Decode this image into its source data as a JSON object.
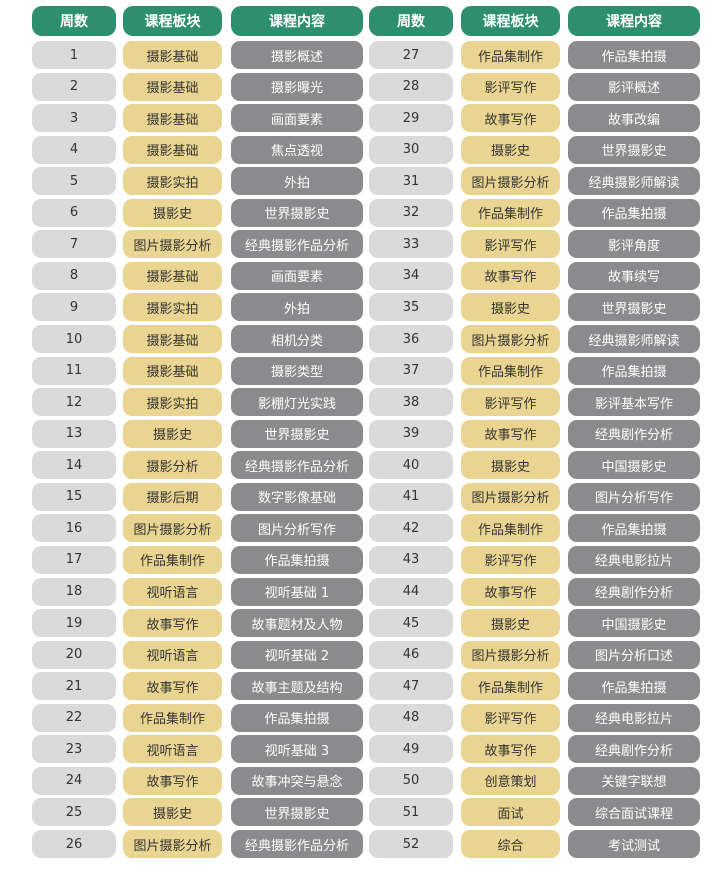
{
  "headers": [
    "周数",
    "课程板块",
    "课程内容",
    "周数",
    "课程板块",
    "课程内容"
  ],
  "colors": {
    "header": "#2e8f6f",
    "week": "#dadada",
    "module": "#e9d591",
    "content": "#8b8b8d"
  },
  "left": [
    [
      "1",
      "摄影基础",
      "摄影概述"
    ],
    [
      "2",
      "摄影基础",
      "摄影曝光"
    ],
    [
      "3",
      "摄影基础",
      "画面要素"
    ],
    [
      "4",
      "摄影基础",
      "焦点透视"
    ],
    [
      "5",
      "摄影实拍",
      "外拍"
    ],
    [
      "6",
      "摄影史",
      "世界摄影史"
    ],
    [
      "7",
      "图片摄影分析",
      "经典摄影作品分析"
    ],
    [
      "8",
      "摄影基础",
      "画面要素"
    ],
    [
      "9",
      "摄影实拍",
      "外拍"
    ],
    [
      "10",
      "摄影基础",
      "相机分类"
    ],
    [
      "11",
      "摄影基础",
      "摄影类型"
    ],
    [
      "12",
      "摄影实拍",
      "影棚灯光实践"
    ],
    [
      "13",
      "摄影史",
      "世界摄影史"
    ],
    [
      "14",
      "摄影分析",
      "经典摄影作品分析"
    ],
    [
      "15",
      "摄影后期",
      "数字影像基础"
    ],
    [
      "16",
      "图片摄影分析",
      "图片分析写作"
    ],
    [
      "17",
      "作品集制作",
      "作品集拍摄"
    ],
    [
      "18",
      "视听语言",
      "视听基础 1"
    ],
    [
      "19",
      "故事写作",
      "故事题材及人物"
    ],
    [
      "20",
      "视听语言",
      "视听基础 2"
    ],
    [
      "21",
      "故事写作",
      "故事主题及结构"
    ],
    [
      "22",
      "作品集制作",
      "作品集拍摄"
    ],
    [
      "23",
      "视听语言",
      "视听基础 3"
    ],
    [
      "24",
      "故事写作",
      "故事冲突与悬念"
    ],
    [
      "25",
      "摄影史",
      "世界摄影史"
    ],
    [
      "26",
      "图片摄影分析",
      "经典摄影作品分析"
    ]
  ],
  "right": [
    [
      "27",
      "作品集制作",
      "作品集拍摄"
    ],
    [
      "28",
      "影评写作",
      "影评概述"
    ],
    [
      "29",
      "故事写作",
      "故事改编"
    ],
    [
      "30",
      "摄影史",
      "世界摄影史"
    ],
    [
      "31",
      "图片摄影分析",
      "经典摄影师解读"
    ],
    [
      "32",
      "作品集制作",
      "作品集拍摄"
    ],
    [
      "33",
      "影评写作",
      "影评角度"
    ],
    [
      "34",
      "故事写作",
      "故事续写"
    ],
    [
      "35",
      "摄影史",
      "世界摄影史"
    ],
    [
      "36",
      "图片摄影分析",
      "经典摄影师解读"
    ],
    [
      "37",
      "作品集制作",
      "作品集拍摄"
    ],
    [
      "38",
      "影评写作",
      "影评基本写作"
    ],
    [
      "39",
      "故事写作",
      "经典剧作分析"
    ],
    [
      "40",
      "摄影史",
      "中国摄影史"
    ],
    [
      "41",
      "图片摄影分析",
      "图片分析写作"
    ],
    [
      "42",
      "作品集制作",
      "作品集拍摄"
    ],
    [
      "43",
      "影评写作",
      "经典电影拉片"
    ],
    [
      "44",
      "故事写作",
      "经典剧作分析"
    ],
    [
      "45",
      "摄影史",
      "中国摄影史"
    ],
    [
      "46",
      "图片摄影分析",
      "图片分析口述"
    ],
    [
      "47",
      "作品集制作",
      "作品集拍摄"
    ],
    [
      "48",
      "影评写作",
      "经典电影拉片"
    ],
    [
      "49",
      "故事写作",
      "经典剧作分析"
    ],
    [
      "50",
      "创意策划",
      "关键字联想"
    ],
    [
      "51",
      "面试",
      "综合面试课程"
    ],
    [
      "52",
      "综合",
      "考试测试"
    ]
  ]
}
